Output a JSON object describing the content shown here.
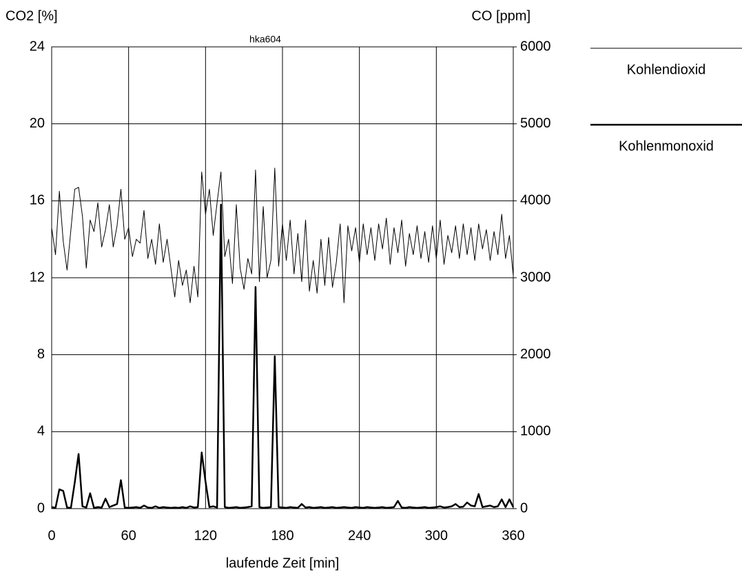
{
  "chart_data": {
    "type": "line",
    "title": "hka604",
    "x_label": "laufende Zeit [min]",
    "y_label": "CO2 [%]",
    "y2_label": "CO [ppm]",
    "x": [
      0,
      3,
      6,
      9,
      12,
      15,
      18,
      21,
      24,
      27,
      30,
      33,
      36,
      39,
      42,
      45,
      48,
      51,
      54,
      57,
      60,
      63,
      66,
      69,
      72,
      75,
      78,
      81,
      84,
      87,
      90,
      93,
      96,
      99,
      102,
      105,
      108,
      111,
      114,
      117,
      120,
      123,
      126,
      129,
      132,
      135,
      138,
      141,
      144,
      147,
      150,
      153,
      156,
      159,
      162,
      165,
      168,
      171,
      174,
      177,
      180,
      183,
      186,
      189,
      192,
      195,
      198,
      201,
      204,
      207,
      210,
      213,
      216,
      219,
      222,
      225,
      228,
      231,
      234,
      237,
      240,
      243,
      246,
      249,
      252,
      255,
      258,
      261,
      264,
      267,
      270,
      273,
      276,
      279,
      282,
      285,
      288,
      291,
      294,
      297,
      300,
      303,
      306,
      309,
      312,
      315,
      318,
      321,
      324,
      327,
      330,
      333,
      336,
      339,
      342,
      345,
      348,
      351,
      354,
      357,
      360
    ],
    "series": [
      {
        "name": "Kohlendioxid",
        "color": "#000000",
        "line_width": 1,
        "values": [
          14.6,
          13.2,
          16.5,
          13.9,
          12.4,
          14.5,
          16.6,
          16.7,
          15.2,
          12.5,
          15.0,
          14.4,
          15.9,
          13.6,
          14.5,
          15.8,
          13.6,
          14.7,
          16.6,
          14.0,
          14.6,
          13.1,
          14.0,
          13.8,
          15.5,
          13.0,
          14.0,
          12.7,
          14.8,
          12.8,
          14.0,
          12.5,
          11.0,
          12.9,
          11.6,
          12.4,
          10.7,
          12.6,
          11.0,
          17.5,
          15.3,
          16.6,
          14.2,
          15.9,
          17.5,
          13.1,
          14.0,
          11.7,
          15.8,
          12.5,
          11.4,
          13.0,
          12.2,
          17.6,
          11.8,
          15.7,
          12.0,
          12.9,
          17.7,
          12.6,
          14.8,
          12.9,
          15.0,
          12.2,
          14.3,
          11.8,
          15.0,
          11.3,
          12.9,
          11.2,
          14.0,
          11.6,
          14.1,
          11.5,
          12.8,
          14.8,
          10.7,
          14.7,
          13.4,
          14.6,
          12.8,
          14.8,
          13.2,
          14.6,
          12.9,
          14.8,
          13.5,
          15.1,
          12.7,
          14.6,
          13.3,
          15.0,
          12.6,
          14.3,
          13.2,
          14.7,
          13.0,
          14.4,
          12.8,
          14.7,
          13.0,
          15.0,
          12.7,
          14.2,
          13.3,
          14.7,
          13.0,
          14.8,
          13.2,
          14.6,
          12.9,
          14.8,
          13.5,
          14.5,
          12.9,
          14.4,
          13.2,
          15.3,
          13.0,
          14.2,
          12.1
        ]
      },
      {
        "name": "Kohlenmonoxid",
        "color": "#000000",
        "line_width": 2.5,
        "axis": "y2",
        "values": [
          20,
          10,
          250,
          230,
          15,
          10,
          340,
          710,
          30,
          15,
          200,
          10,
          20,
          15,
          130,
          20,
          40,
          60,
          370,
          15,
          10,
          15,
          20,
          10,
          40,
          15,
          10,
          30,
          10,
          20,
          15,
          10,
          15,
          10,
          20,
          10,
          30,
          15,
          20,
          730,
          350,
          20,
          30,
          15,
          3950,
          20,
          10,
          15,
          20,
          10,
          15,
          20,
          30,
          2880,
          20,
          10,
          15,
          20,
          1980,
          20,
          15,
          10,
          20,
          15,
          10,
          60,
          15,
          20,
          10,
          15,
          20,
          10,
          15,
          20,
          10,
          15,
          20,
          15,
          10,
          20,
          15,
          10,
          20,
          15,
          10,
          15,
          20,
          10,
          15,
          20,
          100,
          15,
          10,
          20,
          15,
          10,
          15,
          20,
          10,
          15,
          20,
          30,
          15,
          20,
          30,
          60,
          20,
          25,
          80,
          40,
          30,
          190,
          20,
          30,
          40,
          20,
          30,
          120,
          20,
          120,
          20
        ]
      }
    ],
    "xlim": [
      0,
      360
    ],
    "xticks": [
      0,
      60,
      120,
      180,
      240,
      300,
      360
    ],
    "ylim": [
      0,
      24
    ],
    "yticks": [
      0,
      4,
      8,
      12,
      16,
      20,
      24
    ],
    "y2lim": [
      0,
      6000
    ],
    "y2ticks": [
      0,
      1000,
      2000,
      3000,
      4000,
      5000,
      6000
    ],
    "grid": true
  }
}
